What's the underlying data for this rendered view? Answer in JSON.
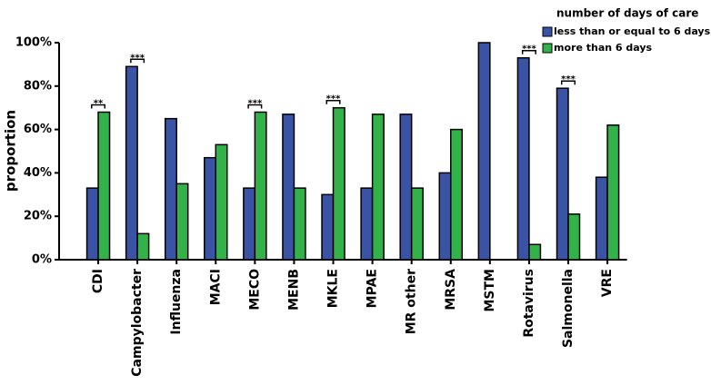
{
  "chart_data": {
    "type": "bar",
    "y_label": "proportion",
    "legend_title": "number of days of care",
    "categories": [
      "CDI",
      "Campylobacter",
      "Influenza",
      "MACI",
      "MECO",
      "MENB",
      "MKLE",
      "MPAE",
      "MR other",
      "MRSA",
      "MSTM",
      "Rotavirus",
      "Salmonella",
      "VRE"
    ],
    "series": [
      {
        "name": "less than or equal to 6 days",
        "color": "#3a53a4",
        "values": [
          33,
          89,
          65,
          47,
          33,
          67,
          30,
          33,
          67,
          40,
          100,
          93,
          79,
          38
        ]
      },
      {
        "name": "more than 6 days",
        "color": "#33b24a",
        "values": [
          68,
          12,
          35,
          53,
          68,
          33,
          70,
          67,
          33,
          60,
          0,
          7,
          21,
          62
        ]
      }
    ],
    "ylim": [
      0,
      100
    ],
    "yticks": [
      {
        "value": 0,
        "label": "0%"
      },
      {
        "value": 20,
        "label": "20%"
      },
      {
        "value": 40,
        "label": "40%"
      },
      {
        "value": 60,
        "label": "60%"
      },
      {
        "value": 80,
        "label": "80%"
      },
      {
        "value": 100,
        "label": "100%"
      }
    ],
    "annotations": [
      {
        "category": "CDI",
        "label": "**"
      },
      {
        "category": "Campylobacter",
        "label": "***"
      },
      {
        "category": "MECO",
        "label": "***"
      },
      {
        "category": "MKLE",
        "label": "***"
      },
      {
        "category": "Rotavirus",
        "label": "***"
      },
      {
        "category": "Salmonella",
        "label": "***"
      }
    ],
    "legend_position": "top-right"
  }
}
